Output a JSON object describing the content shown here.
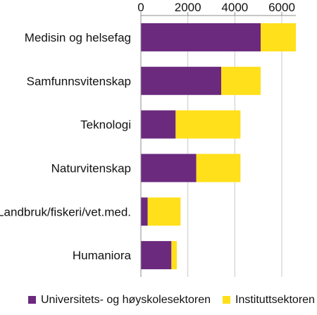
{
  "chart_data": {
    "type": "bar",
    "orientation": "horizontal",
    "stacked": true,
    "categories": [
      "Medisin og helsefag",
      "Samfunnsvitenskap",
      "Teknologi",
      "Naturvitenskap",
      "Landbruk/fiskeri/vet.med.",
      "Humaniora"
    ],
    "series": [
      {
        "name": "Universitets- og høyskolesektoren",
        "color": "#6b2a7d",
        "values": [
          5100,
          3420,
          1480,
          2360,
          290,
          1300
        ]
      },
      {
        "name": "Instituttsektoren",
        "color": "#ffe01a",
        "values": [
          1500,
          1680,
          2760,
          1880,
          1400,
          230
        ]
      }
    ],
    "title": "",
    "xlabel": "",
    "ylabel": "",
    "xlim": [
      0,
      6600
    ],
    "xticks": [
      0,
      2000,
      4000,
      6000
    ],
    "xtick_labels": [
      "0",
      "2000",
      "4000",
      "6000"
    ],
    "axis_position": "top",
    "grid": true,
    "legend_placement": "bottom"
  }
}
